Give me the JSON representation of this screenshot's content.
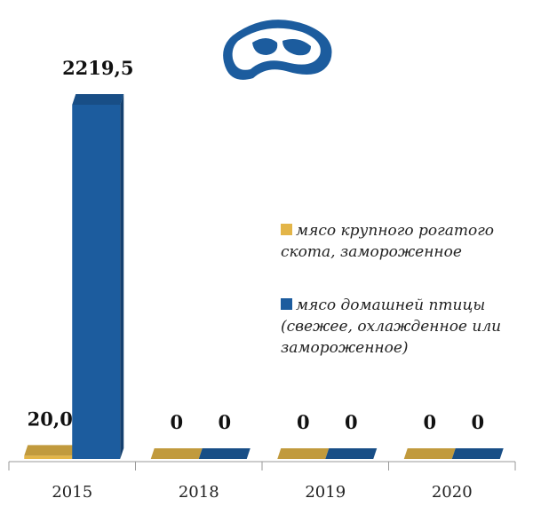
{
  "chart_data": {
    "type": "bar",
    "categories": [
      "2015",
      "2018",
      "2019",
      "2020"
    ],
    "series": [
      {
        "name": "мясо крупного рогатого скота, замороженное",
        "color": "#e3b548",
        "values": [
          20.0,
          0,
          0,
          0
        ],
        "value_labels": [
          "20,0",
          "0",
          "0",
          "0"
        ]
      },
      {
        "name": "мясо домашней птицы (свежее, охлажденное или замороженное)",
        "color": "#1c5c9e",
        "values": [
          2219.5,
          0,
          0,
          0
        ],
        "value_labels": [
          "2219,5",
          "0",
          "0",
          "0"
        ]
      }
    ]
  }
}
